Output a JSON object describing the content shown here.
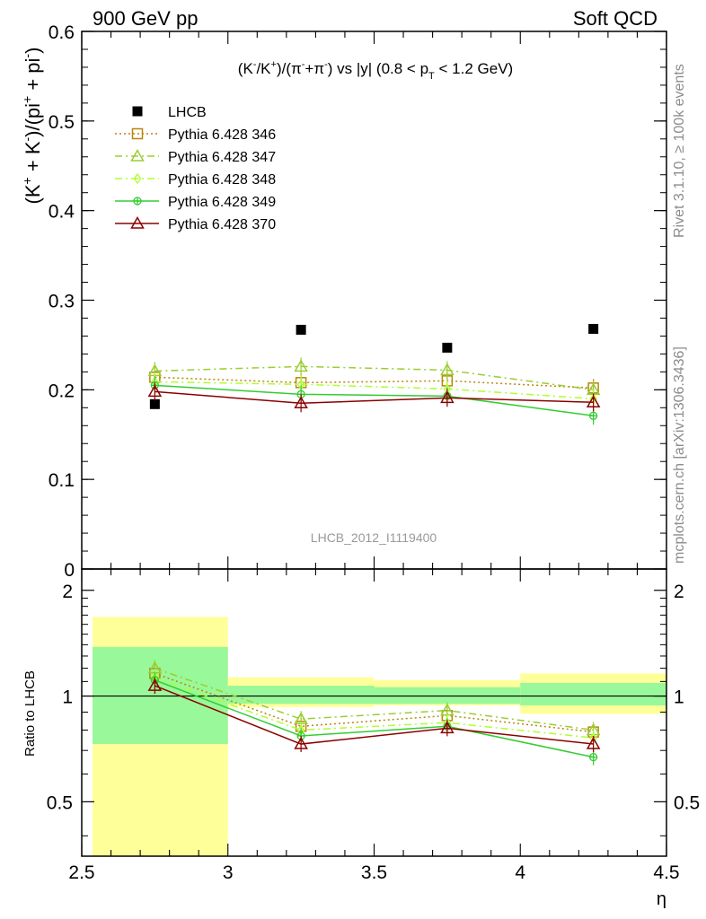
{
  "header": {
    "left": "900 GeV pp",
    "right": "Soft QCD"
  },
  "side_labels": {
    "rivet": "Rivet 3.1.10, ≥ 100k events",
    "mcplots": "mcplots.cern.ch [arXiv:1306.3436]"
  },
  "chart_data": [
    {
      "type": "scatter",
      "title": "(K⁻/K⁺)/(π⁻+π⁻) vs |y| (0.8 < p_T < 1.2 GeV)",
      "title_parts": {
        "pre": "(K",
        "k1": "-",
        "mid1": "/K",
        "k2": "+",
        "mid2": ")/(π",
        "p1": "-",
        "mid3": "+π",
        "p2": "-",
        "post": ") vs |y| (0.8 < p",
        "sub": "T",
        "tail": " < 1.2 GeV)"
      },
      "ylabel": "(K⁺ + K⁻)/(pi⁺ + pi⁻)",
      "ylabel_parts": {
        "a": "(K",
        "s1": "+",
        "b": " + K",
        "s2": "-",
        "c": ")/(pi",
        "s3": "+",
        "d": " + pi",
        "s4": "-",
        "e": ")"
      },
      "xlabel": "",
      "xlim": [
        2.5,
        4.5
      ],
      "ylim": [
        0,
        0.6
      ],
      "yticks": [
        "0",
        "0.1",
        "0.2",
        "0.3",
        "0.4",
        "0.5",
        "0.6"
      ],
      "watermark": "LHCB_2012_I1119400",
      "legend_position": "top-left",
      "x": [
        2.75,
        3.25,
        3.75,
        4.25
      ],
      "series": [
        {
          "name": "LHCB",
          "values": [
            0.184,
            0.267,
            0.247,
            0.268
          ],
          "color": "#000000",
          "marker": "filled-square"
        },
        {
          "name": "Pythia 6.428 346",
          "values": [
            0.214,
            0.208,
            0.21,
            0.202
          ],
          "color": "#b8860b",
          "marker": "open-square",
          "dash": "dotted"
        },
        {
          "name": "Pythia 6.428 347",
          "values": [
            0.221,
            0.226,
            0.222,
            0.2
          ],
          "color": "#9acd32",
          "marker": "open-triangle",
          "dash": "dash-dot"
        },
        {
          "name": "Pythia 6.428 348",
          "values": [
            0.209,
            0.206,
            0.201,
            0.19
          ],
          "color": "#adff2f",
          "marker": "diamond",
          "dash": "dash-dot"
        },
        {
          "name": "Pythia 6.428 349",
          "values": [
            0.205,
            0.195,
            0.193,
            0.171
          ],
          "color": "#32cd32",
          "marker": "crossed-circle",
          "dash": "solid"
        },
        {
          "name": "Pythia 6.428 370",
          "values": [
            0.198,
            0.185,
            0.191,
            0.186
          ],
          "color": "#8b0000",
          "marker": "open-triangle",
          "dash": "solid"
        }
      ]
    },
    {
      "type": "line",
      "ylabel": "Ratio to LHCB",
      "xlabel": "η",
      "xlim": [
        2.5,
        4.5
      ],
      "ylim": [
        0.35,
        2.3
      ],
      "log_y": true,
      "xticks": [
        "2.5",
        "3",
        "3.5",
        "4",
        "4.5"
      ],
      "yticks": [
        "0.5",
        "1",
        "2"
      ],
      "bands": [
        {
          "x0": 2.5,
          "x1": 3.0,
          "inner": [
            0.73,
            1.38
          ],
          "outer": [
            0.35,
            1.68
          ]
        },
        {
          "x0": 3.0,
          "x1": 3.5,
          "inner": [
            0.95,
            1.07
          ],
          "outer": [
            0.93,
            1.13
          ]
        },
        {
          "x0": 3.5,
          "x1": 4.0,
          "inner": [
            0.95,
            1.06
          ],
          "outer": [
            0.94,
            1.11
          ]
        },
        {
          "x0": 4.0,
          "x1": 4.5,
          "inner": [
            0.94,
            1.09
          ],
          "outer": [
            0.89,
            1.16
          ]
        }
      ],
      "x": [
        2.75,
        3.25,
        3.75,
        4.25
      ],
      "series": [
        {
          "name": "Pythia 6.428 346",
          "values": [
            1.16,
            0.82,
            0.88,
            0.79
          ]
        },
        {
          "name": "Pythia 6.428 347",
          "values": [
            1.2,
            0.86,
            0.91,
            0.8
          ]
        },
        {
          "name": "Pythia 6.428 348",
          "values": [
            1.13,
            0.8,
            0.84,
            0.76
          ]
        },
        {
          "name": "Pythia 6.428 349",
          "values": [
            1.11,
            0.77,
            0.82,
            0.67
          ]
        },
        {
          "name": "Pythia 6.428 370",
          "values": [
            1.07,
            0.73,
            0.81,
            0.73
          ]
        }
      ]
    }
  ]
}
